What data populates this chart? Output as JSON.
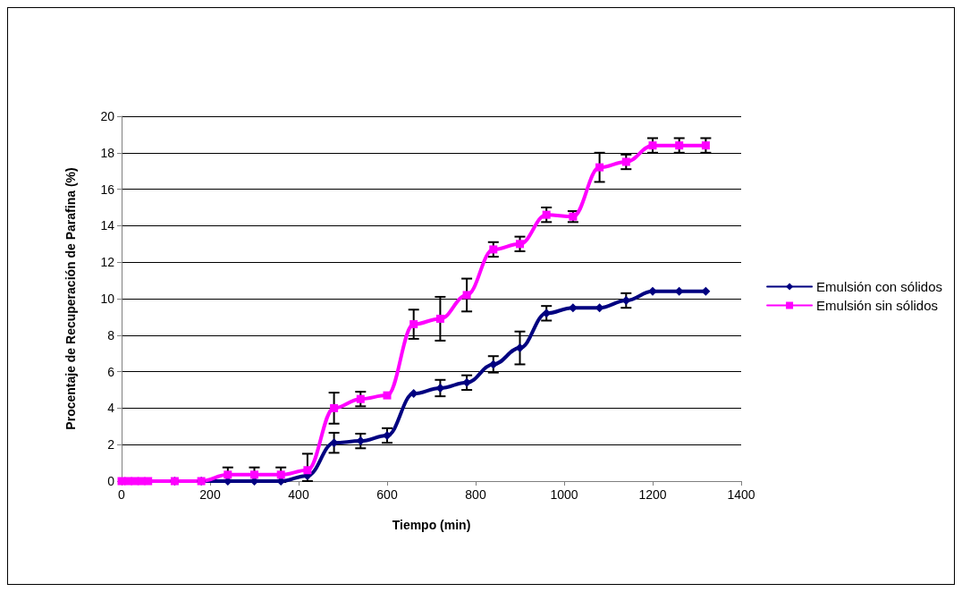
{
  "chart_data": {
    "type": "line",
    "xlabel": "Tiempo (min)",
    "ylabel": "Procentaje de Recuperación de Parafina (%)",
    "x": [
      0,
      15,
      30,
      45,
      60,
      120,
      180,
      240,
      300,
      360,
      420,
      480,
      540,
      600,
      660,
      720,
      780,
      840,
      900,
      960,
      1020,
      1080,
      1140,
      1200,
      1260,
      1320
    ],
    "series": [
      {
        "name": "Emulsión con sólidos",
        "color": "#000080",
        "marker": "diamond",
        "values": [
          null,
          null,
          null,
          null,
          null,
          0,
          0,
          0,
          0,
          0,
          0.3,
          2.1,
          2.2,
          2.5,
          4.8,
          5.1,
          5.4,
          6.4,
          7.3,
          9.2,
          9.5,
          9.5,
          9.9,
          10.4,
          10.4,
          10.4
        ],
        "errors": [
          null,
          null,
          null,
          null,
          null,
          null,
          null,
          null,
          null,
          null,
          null,
          0.55,
          0.4,
          0.4,
          null,
          0.45,
          0.4,
          0.45,
          0.9,
          0.4,
          null,
          null,
          0.4,
          null,
          null,
          null
        ]
      },
      {
        "name": "Emulsión sin sólidos",
        "color": "#ff00ff",
        "marker": "square",
        "values": [
          0,
          0,
          0,
          0,
          0,
          0,
          0,
          0.35,
          0.35,
          0.35,
          0.6,
          4.0,
          4.5,
          4.7,
          8.6,
          8.9,
          10.2,
          12.7,
          13.0,
          14.6,
          14.5,
          17.2,
          17.5,
          18.4,
          18.4,
          18.4
        ],
        "errors": [
          null,
          null,
          null,
          null,
          null,
          null,
          null,
          0.4,
          0.4,
          0.4,
          [
            0,
            1.5
          ],
          0.85,
          0.4,
          null,
          0.8,
          1.2,
          0.9,
          0.4,
          0.4,
          0.4,
          0.3,
          0.8,
          0.4,
          0.4,
          0.4,
          0.4
        ]
      }
    ],
    "xlim": [
      0,
      1400
    ],
    "xticks": [
      0,
      200,
      400,
      600,
      800,
      1000,
      1200,
      1400
    ],
    "ylim": [
      0,
      20
    ],
    "yticks": [
      0,
      2,
      4,
      6,
      8,
      10,
      12,
      14,
      16,
      18,
      20
    ],
    "grid": "y",
    "legend": "right",
    "line_style": "solid"
  }
}
